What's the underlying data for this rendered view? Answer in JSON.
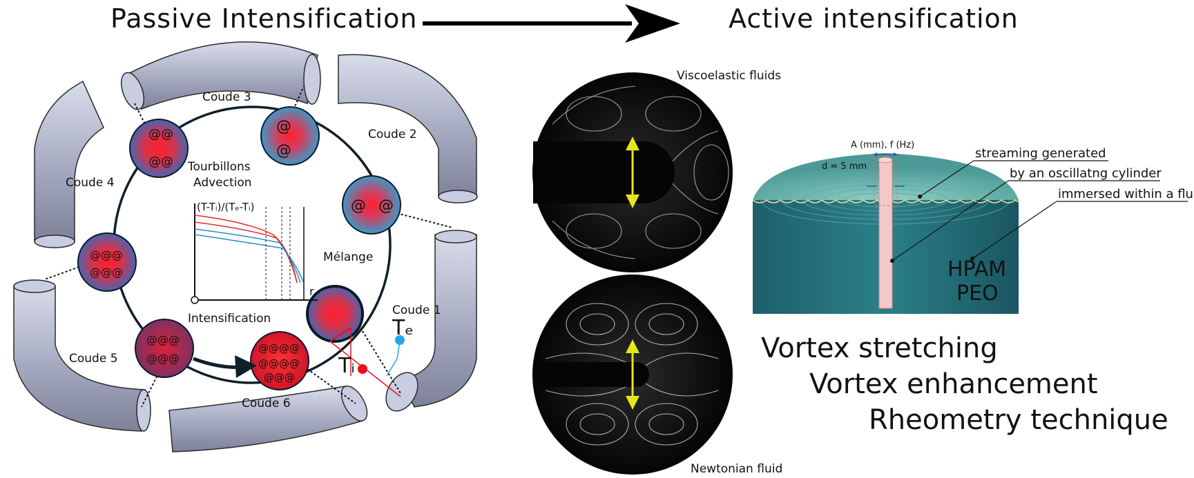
{
  "titles": {
    "passive": "Passive Intensification",
    "active": "Active intensification"
  },
  "passive": {
    "bends": [
      "Coude 1",
      "Coude 2",
      "Coude 3",
      "Coude 4",
      "Coude 5",
      "Coude 6"
    ],
    "labels": {
      "vortex_line1": "Tourbillons",
      "vortex_line2": "Advection",
      "mixing": "Mélange",
      "intensification": "Intensification"
    },
    "inset_plot": {
      "ylabel": "(T-Tᵢ)/(Tₑ-Tᵢ)",
      "xlabel": "r"
    },
    "temps": {
      "ti": "Tᵢ",
      "te": "Tₑ"
    }
  },
  "active": {
    "viscoelastic_label": "Viscoelastic fluids",
    "newtonian_label": "Newtonian fluid",
    "cylinder": {
      "amp_freq": "A (mm), f (Hz)",
      "diameter": "d = 5 mm",
      "fluids_line1": "HPAM",
      "fluids_line2": "PEO"
    },
    "annotations": [
      "streaming generated",
      "by an oscillatng cylinder",
      "immersed within a fluid"
    ],
    "effects": [
      "Vortex stretching",
      "Vortex enhancement",
      "Rheometry technique"
    ]
  },
  "colors": {
    "pipe": "#aeb3c8",
    "ring": "#0f1f2a",
    "hot": "#ff1e2d",
    "cold_blue": "#2a9fd8",
    "purple": "#7a3a6a",
    "te_color": "#21a8e8",
    "ti_color": "#e8101e",
    "tank": "#1f6f78",
    "tank_top": "#6fb9b0"
  }
}
